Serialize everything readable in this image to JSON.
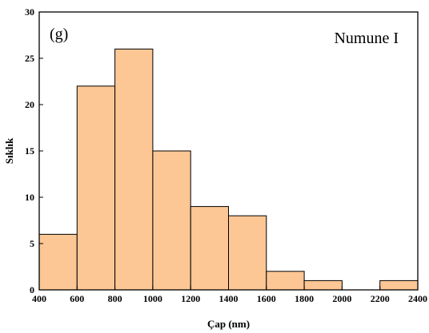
{
  "chart_data": {
    "type": "bar",
    "histogram": true,
    "bin_edges": [
      400,
      600,
      800,
      1000,
      1200,
      1400,
      1600,
      1800,
      2000,
      2200,
      2400
    ],
    "values": [
      6,
      22,
      26,
      15,
      9,
      8,
      2,
      1,
      0,
      1
    ],
    "xlabel": "Çap (nm)",
    "ylabel": "Sıklık",
    "xlim": [
      400,
      2400
    ],
    "ylim": [
      0,
      30
    ],
    "x_ticks": [
      400,
      600,
      800,
      1000,
      1200,
      1400,
      1600,
      1800,
      2000,
      2200,
      2400
    ],
    "y_ticks": [
      0,
      5,
      10,
      15,
      20,
      25,
      30
    ],
    "panel_label": "(g)",
    "sample_label": "Numune I",
    "grid": false,
    "bar_color": "#fcc795",
    "edge_color": "#000000"
  }
}
